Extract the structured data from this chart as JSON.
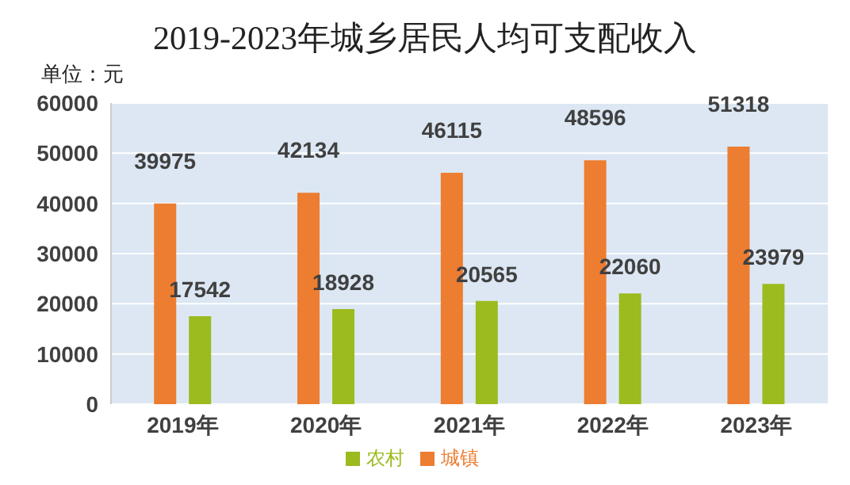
{
  "chart_data": {
    "type": "bar",
    "title": "2019-2023年城乡居民人均可支配收入",
    "annotations": [
      "单位：元"
    ],
    "categories": [
      "2019年",
      "2020年",
      "2021年",
      "2022年",
      "2023年"
    ],
    "series": [
      {
        "name": "城镇",
        "color": "#ed7d31",
        "values": [
          39975,
          42134,
          46115,
          48596,
          51318
        ]
      },
      {
        "name": "农村",
        "color": "#9bbb1f",
        "values": [
          17542,
          18928,
          20565,
          22060,
          23979
        ]
      }
    ],
    "ylim": [
      0,
      60000
    ],
    "yticks": [
      0,
      10000,
      20000,
      30000,
      40000,
      50000,
      60000
    ],
    "grid": "y",
    "legend": "bottom",
    "data_labels": true
  }
}
